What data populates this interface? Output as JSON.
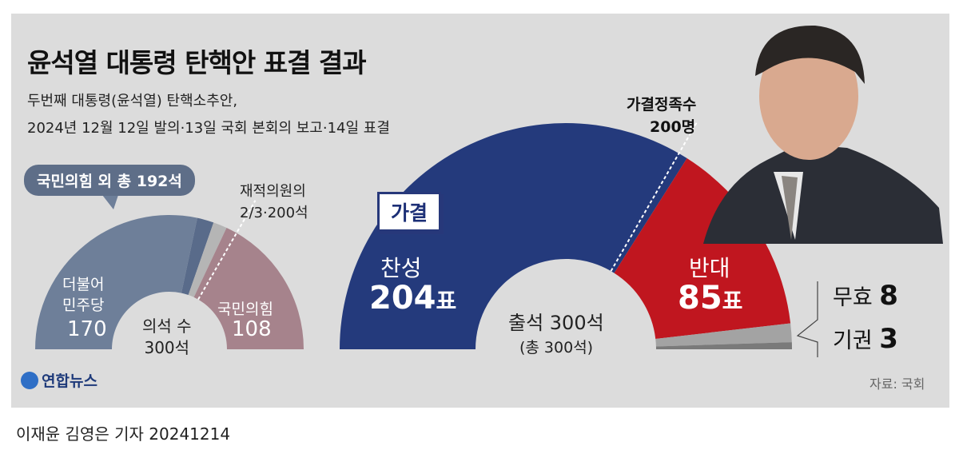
{
  "title": "윤석열 대통령 탄핵안 표결 결과",
  "subtitle_lines": [
    "두번째 대통령(윤석열) 탄핵소추안,",
    "2024년 12월 12일 발의·13일 국회 본회의 보고·14일 표결"
  ],
  "byline": "이재윤 김영은 기자  20241214",
  "logo": "연합뉴스",
  "source": "자료: 국회",
  "colors": {
    "blue": "#243a7c",
    "red": "#c0161f",
    "slate": "#6e7f99",
    "slate_dark": "#596b8a",
    "gray": "#b5b5b5",
    "ppp": "#a6838c",
    "invalid": "#a3a3a3",
    "abstain": "#7a7a7a",
    "background": "#dcdcdc"
  },
  "chart_data": [
    {
      "type": "pie",
      "variant": "semi-donut",
      "title": "",
      "center_label": [
        "의석 수",
        "300석"
      ],
      "callout": "국민의힘 외 총 192석",
      "threshold": {
        "label_lines": [
          "재적의원의",
          "2/3·200석"
        ],
        "value": 200
      },
      "slices": [
        {
          "label": "더불어민주당",
          "label_lines": [
            "더불어",
            "민주당"
          ],
          "value": 170
        },
        {
          "label": "",
          "value": 12
        },
        {
          "label": "",
          "value": 10
        },
        {
          "label": "국민의힘",
          "value": 108
        }
      ],
      "total": 300
    },
    {
      "type": "pie",
      "variant": "semi-donut",
      "title": "",
      "badge": "가결",
      "center_label": [
        "출석 300석",
        "(총 300석)"
      ],
      "threshold": {
        "label_lines": [
          "가결정족수",
          "200명"
        ],
        "value": 200
      },
      "slices": [
        {
          "label": "찬성",
          "value": 204,
          "unit": "표"
        },
        {
          "label": "반대",
          "value": 85,
          "unit": "표"
        },
        {
          "label": "무효",
          "value": 8
        },
        {
          "label": "기권",
          "value": 3
        }
      ],
      "total": 300
    }
  ]
}
